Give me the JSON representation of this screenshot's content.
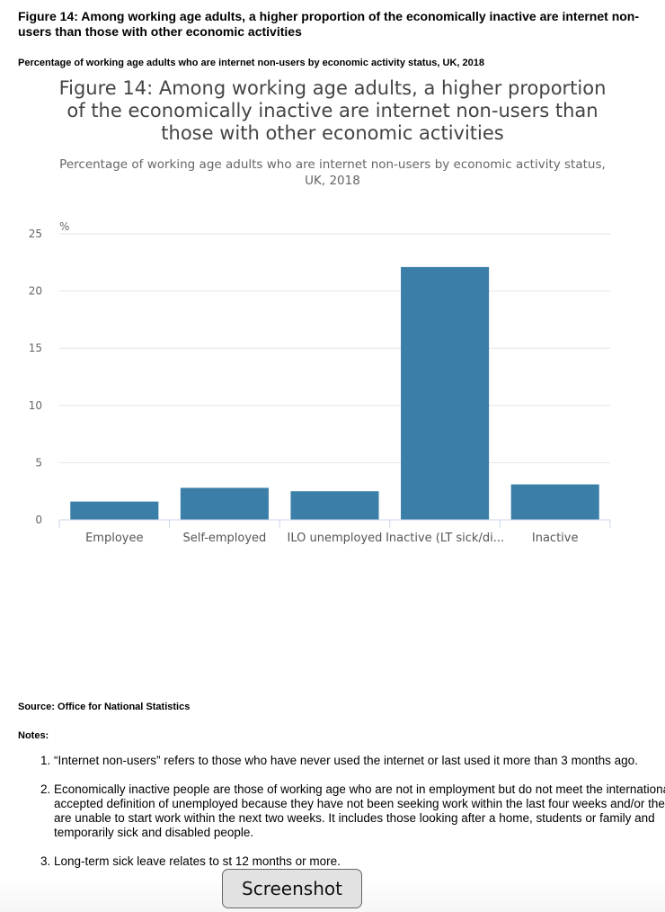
{
  "figure": {
    "heading": "Figure 14: Among working age adults, a higher proportion of the economically inactive are internet non-users than those with other economic activities",
    "subheading": "Percentage of working age adults who are internet non-users by economic activity status, UK, 2018"
  },
  "chart_data": {
    "type": "bar",
    "title": "Figure 14: Among working age adults, a higher proportion of the economically inactive are internet non-users than those with other economic activities",
    "subtitle": "Percentage of working age adults who are internet non-users by economic activity status, UK, 2018",
    "ylabel": "%",
    "xlabel": "",
    "ylim": [
      0,
      25
    ],
    "yticks": [
      0,
      5,
      10,
      15,
      20,
      25
    ],
    "grid": true,
    "categories": [
      "Employee",
      "Self-employed",
      "ILO unemployed",
      "Inactive (LT sick/di...",
      "Inactive"
    ],
    "values": [
      1.6,
      2.8,
      2.5,
      22.1,
      3.1
    ],
    "bar_color": "#3b7fa8"
  },
  "source": "Source: Office for National Statistics",
  "notes": {
    "label": "Notes:",
    "items": [
      "“Internet non-users” refers to those who have never used the internet or last used it more than 3 months ago.",
      "Economically inactive people are those of working age who are not in employment but do not meet the internationally accepted definition of unemployed because they have not been seeking work within the last four weeks and/or they are unable to start work within the next two weeks. It includes those looking after a home, students or family and temporarily sick and disabled people.",
      "Long-term sick leave relates to st 12 months or more."
    ]
  },
  "overlay": {
    "screenshot_label": "Screenshot"
  }
}
